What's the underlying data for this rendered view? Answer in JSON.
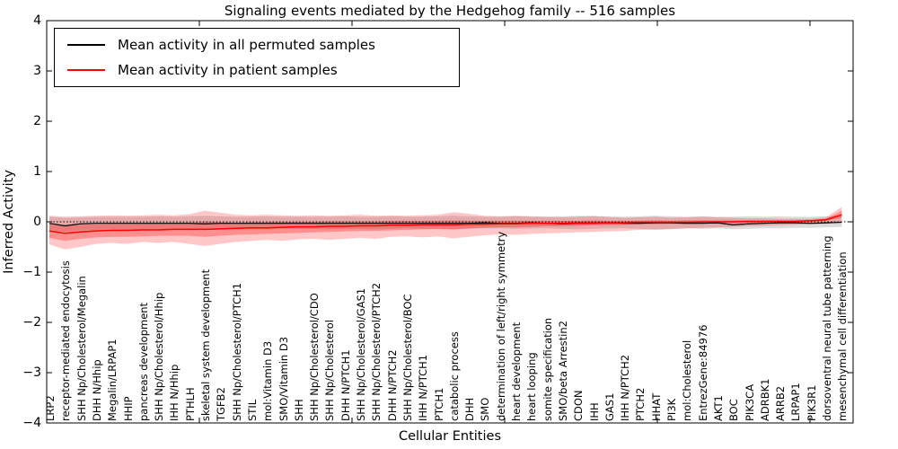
{
  "figure": {
    "title": "Signaling events mediated by the Hedgehog family -- 516 samples",
    "xaxis_title": "Cellular Entities",
    "yaxis_title": "Inferred Activity"
  },
  "colors": {
    "permuted_line": "#000000",
    "patient_line": "#ff0000",
    "permuted_band": "rgba(0,0,0,0.14)",
    "patient_band_outer": "rgba(255,0,0,0.22)",
    "patient_band_inner": "rgba(255,0,0,0.28)",
    "axis": "#000000",
    "background": "#ffffff"
  },
  "chart_data": {
    "type": "line",
    "title": "Signaling events mediated by the Hedgehog family -- 516 samples",
    "xlabel": "Cellular Entities",
    "ylabel": "Inferred Activity",
    "ylim": [
      -4,
      4
    ],
    "yticks": [
      4,
      3,
      2,
      1,
      0,
      -1,
      -2,
      -3,
      -4
    ],
    "grid": false,
    "zero_line": true,
    "legend_position": "upper left",
    "categories": [
      "LRP2",
      "receptor-mediated endocytosis",
      "SHH Np/Cholesterol/Megalin",
      "DHH N/Hhip",
      "Megalin/LRPAP1",
      "HHIP",
      "pancreas development",
      "SHH Np/Cholesterol/Hhip",
      "IHH N/Hhip",
      "PTHLH",
      "skeletal system development",
      "TGFB2",
      "SHH Np/Cholesterol/PTCH1",
      "STIL",
      "mol:Vitamin D3",
      "SMO/Vitamin D3",
      "SHH",
      "SHH Np/Cholesterol/CDO",
      "SHH Np/Cholesterol",
      "DHH N/PTCH1",
      "SHH Np/Cholesterol/GAS1",
      "SHH Np/Cholesterol/PTCH2",
      "DHH N/PTCH2",
      "SHH Np/Cholesterol/BOC",
      "IHH N/PTCH1",
      "PTCH1",
      "catabolic process",
      "DHH",
      "SMO",
      "determination of left/right symmetry",
      "heart development",
      "heart looping",
      "somite specification",
      "SMO/beta Arrestin2",
      "CDON",
      "IHH",
      "GAS1",
      "IHH N/PTCH2",
      "PTCH2",
      "HHAT",
      "PI3K",
      "mol:Cholesterol",
      "EntrezGene:84976",
      "AKT1",
      "BOC",
      "PIK3CA",
      "ADRBK1",
      "ARRB2",
      "LRPAP1",
      "PIK3R1",
      "dorsoventral neural tube patterning",
      "mesenchymal cell differentiation"
    ],
    "series": [
      {
        "name": "Mean activity in all permuted samples",
        "color": "#000000",
        "values": [
          -0.03,
          -0.08,
          -0.04,
          -0.03,
          -0.03,
          -0.03,
          -0.03,
          -0.03,
          -0.03,
          -0.03,
          -0.04,
          -0.03,
          -0.03,
          -0.03,
          -0.03,
          -0.03,
          -0.03,
          -0.03,
          -0.03,
          -0.03,
          -0.03,
          -0.03,
          -0.03,
          -0.03,
          -0.03,
          -0.03,
          -0.03,
          -0.03,
          -0.02,
          -0.03,
          -0.03,
          -0.02,
          -0.03,
          -0.04,
          -0.03,
          -0.03,
          -0.02,
          -0.03,
          -0.03,
          -0.02,
          -0.02,
          -0.03,
          -0.03,
          -0.02,
          -0.06,
          -0.04,
          -0.03,
          -0.02,
          -0.02,
          -0.03,
          -0.02,
          -0.01
        ]
      },
      {
        "name": "Mean activity in patient samples",
        "color": "#ff0000",
        "values": [
          -0.18,
          -0.23,
          -0.2,
          -0.18,
          -0.17,
          -0.17,
          -0.16,
          -0.16,
          -0.15,
          -0.15,
          -0.15,
          -0.14,
          -0.13,
          -0.12,
          -0.12,
          -0.11,
          -0.1,
          -0.1,
          -0.09,
          -0.09,
          -0.08,
          -0.08,
          -0.07,
          -0.07,
          -0.06,
          -0.06,
          -0.06,
          -0.05,
          -0.05,
          -0.04,
          -0.04,
          -0.03,
          -0.03,
          -0.03,
          -0.02,
          -0.02,
          -0.02,
          -0.02,
          -0.01,
          -0.01,
          -0.01,
          -0.01,
          0.0,
          0.0,
          0.0,
          0.01,
          0.01,
          0.01,
          0.01,
          0.02,
          0.04,
          0.14
        ]
      }
    ],
    "bands": [
      {
        "name": "permuted-samples-range",
        "color": "rgba(0,0,0,0.14)",
        "upper": [
          0.1,
          0.08,
          0.09,
          0.1,
          0.1,
          0.1,
          0.1,
          0.11,
          0.1,
          0.11,
          0.12,
          0.11,
          0.1,
          0.1,
          0.11,
          0.1,
          0.1,
          0.1,
          0.1,
          0.11,
          0.1,
          0.1,
          0.11,
          0.1,
          0.1,
          0.11,
          0.12,
          0.11,
          0.1,
          0.1,
          0.11,
          0.1,
          0.1,
          0.11,
          0.12,
          0.11,
          0.1,
          0.1,
          0.11,
          0.12,
          0.11,
          0.1,
          0.11,
          0.1,
          0.1,
          0.11,
          0.1,
          0.11,
          0.1,
          0.1,
          0.11,
          0.12
        ],
        "lower": [
          -0.16,
          -0.2,
          -0.17,
          -0.16,
          -0.15,
          -0.16,
          -0.15,
          -0.15,
          -0.15,
          -0.16,
          -0.16,
          -0.15,
          -0.15,
          -0.14,
          -0.15,
          -0.14,
          -0.14,
          -0.14,
          -0.15,
          -0.14,
          -0.14,
          -0.15,
          -0.14,
          -0.13,
          -0.14,
          -0.14,
          -0.15,
          -0.14,
          -0.13,
          -0.13,
          -0.14,
          -0.13,
          -0.13,
          -0.14,
          -0.15,
          -0.14,
          -0.13,
          -0.13,
          -0.14,
          -0.16,
          -0.15,
          -0.13,
          -0.14,
          -0.13,
          -0.15,
          -0.14,
          -0.13,
          -0.13,
          -0.12,
          -0.12,
          -0.11,
          -0.1
        ]
      },
      {
        "name": "patient-samples-range-outer",
        "color": "rgba(255,0,0,0.22)",
        "upper": [
          0.12,
          0.1,
          0.11,
          0.12,
          0.13,
          0.12,
          0.13,
          0.14,
          0.13,
          0.15,
          0.22,
          0.18,
          0.14,
          0.13,
          0.14,
          0.13,
          0.12,
          0.13,
          0.12,
          0.13,
          0.14,
          0.12,
          0.13,
          0.12,
          0.13,
          0.14,
          0.19,
          0.16,
          0.12,
          0.11,
          0.12,
          0.11,
          0.1,
          0.09,
          0.1,
          0.12,
          0.1,
          0.08,
          0.09,
          0.1,
          0.08,
          0.09,
          0.1,
          0.09,
          0.08,
          0.07,
          0.07,
          0.06,
          0.06,
          0.06,
          0.09,
          0.3
        ],
        "lower": [
          -0.45,
          -0.55,
          -0.5,
          -0.44,
          -0.42,
          -0.44,
          -0.4,
          -0.42,
          -0.4,
          -0.44,
          -0.48,
          -0.44,
          -0.4,
          -0.38,
          -0.36,
          -0.38,
          -0.35,
          -0.34,
          -0.36,
          -0.34,
          -0.32,
          -0.34,
          -0.3,
          -0.29,
          -0.31,
          -0.29,
          -0.33,
          -0.3,
          -0.27,
          -0.25,
          -0.26,
          -0.24,
          -0.23,
          -0.22,
          -0.21,
          -0.2,
          -0.19,
          -0.18,
          -0.16,
          -0.15,
          -0.14,
          -0.13,
          -0.12,
          -0.11,
          -0.1,
          -0.09,
          -0.08,
          -0.07,
          -0.06,
          -0.05,
          -0.04,
          -0.01
        ]
      },
      {
        "name": "patient-samples-range-inner",
        "color": "rgba(255,0,0,0.28)",
        "upper": [
          -0.05,
          -0.08,
          -0.06,
          -0.05,
          -0.04,
          -0.04,
          -0.03,
          -0.03,
          -0.02,
          -0.02,
          0.0,
          -0.01,
          -0.02,
          -0.01,
          -0.01,
          0.0,
          0.0,
          0.0,
          0.01,
          0.01,
          0.01,
          0.01,
          0.02,
          0.02,
          0.02,
          0.02,
          0.03,
          0.02,
          0.02,
          0.02,
          0.02,
          0.02,
          0.02,
          0.02,
          0.02,
          0.03,
          0.02,
          0.02,
          0.02,
          0.03,
          0.02,
          0.03,
          0.03,
          0.03,
          0.03,
          0.03,
          0.03,
          0.03,
          0.03,
          0.04,
          0.06,
          0.22
        ],
        "lower": [
          -0.32,
          -0.38,
          -0.34,
          -0.31,
          -0.3,
          -0.3,
          -0.29,
          -0.28,
          -0.28,
          -0.28,
          -0.3,
          -0.28,
          -0.26,
          -0.25,
          -0.24,
          -0.23,
          -0.22,
          -0.21,
          -0.2,
          -0.19,
          -0.18,
          -0.18,
          -0.17,
          -0.16,
          -0.15,
          -0.14,
          -0.15,
          -0.13,
          -0.12,
          -0.11,
          -0.11,
          -0.1,
          -0.09,
          -0.09,
          -0.08,
          -0.07,
          -0.07,
          -0.06,
          -0.05,
          -0.05,
          -0.04,
          -0.04,
          -0.03,
          -0.03,
          -0.03,
          -0.02,
          -0.02,
          -0.01,
          -0.01,
          0.0,
          0.02,
          0.08
        ]
      }
    ]
  }
}
